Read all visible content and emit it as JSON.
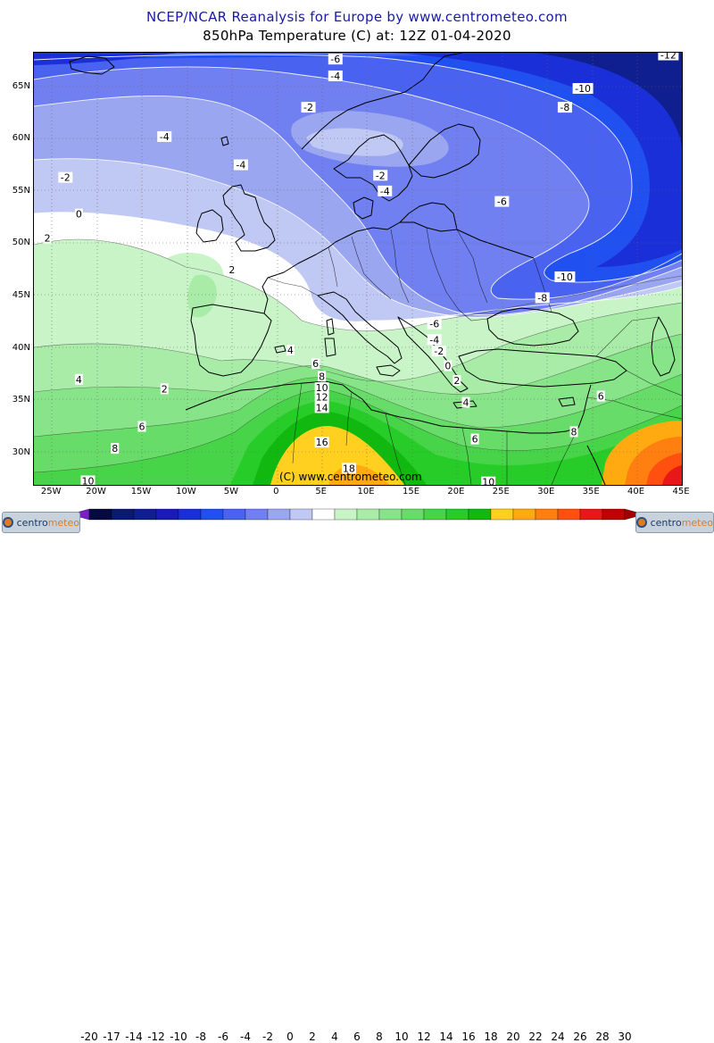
{
  "title_line1": "NCEP/NCAR Reanalysis for Europe by www.centrometeo.com",
  "title_line2": "850hPa Temperature (C) at: 12Z 01-04-2020",
  "copyright": "(C) www.centrometeo.com",
  "logo_left": {
    "a": "centro",
    "b": "meteo"
  },
  "logo_right": {
    "a": "centro",
    "b": "meteo"
  },
  "lat_labels": [
    "65N",
    "60N",
    "55N",
    "50N",
    "45N",
    "40N",
    "35N",
    "30N"
  ],
  "lon_labels": [
    "25W",
    "20W",
    "15W",
    "10W",
    "5W",
    "0",
    "5E",
    "10E",
    "15E",
    "20E",
    "25E",
    "30E",
    "35E",
    "40E",
    "45E"
  ],
  "colorbar": {
    "labels": [
      "-20",
      "-17",
      "-14",
      "-12",
      "-10",
      "-8",
      "-6",
      "-4",
      "-2",
      "0",
      "2",
      "4",
      "6",
      "8",
      "10",
      "12",
      "14",
      "16",
      "18",
      "20",
      "22",
      "24",
      "26",
      "28",
      "30"
    ],
    "colors": [
      "#7a1fc8",
      "#050a40",
      "#0a1a70",
      "#0f1f90",
      "#1a1ab8",
      "#1a2fd8",
      "#2050f0",
      "#4a62f0",
      "#7080f0",
      "#9aa6f0",
      "#c0c8f4",
      "#ffffff",
      "#c8f4c8",
      "#a8eca8",
      "#88e488",
      "#68dc68",
      "#48d448",
      "#28cc28",
      "#10b810",
      "#ffd020",
      "#ffaa10",
      "#ff8010",
      "#ff5010",
      "#e81818",
      "#c00000",
      "#a00000"
    ]
  },
  "contour_labels": [
    {
      "t": "-12",
      "lon": 43.5,
      "lat": 68.0
    },
    {
      "t": "-6",
      "lon": 6.5,
      "lat": 67.6
    },
    {
      "t": "-4",
      "lon": 6.5,
      "lat": 66.0
    },
    {
      "t": "-10",
      "lon": 34.0,
      "lat": 64.8
    },
    {
      "t": "-2",
      "lon": 3.5,
      "lat": 63.0
    },
    {
      "t": "-8",
      "lon": 32.0,
      "lat": 63.0
    },
    {
      "t": "-4",
      "lon": -12.5,
      "lat": 60.2
    },
    {
      "t": "-4",
      "lon": -4.0,
      "lat": 57.5
    },
    {
      "t": "-2",
      "lon": -23.5,
      "lat": 56.3
    },
    {
      "t": "-2",
      "lon": 11.5,
      "lat": 56.5
    },
    {
      "t": "-4",
      "lon": 12.0,
      "lat": 55.0
    },
    {
      "t": "-6",
      "lon": 25.0,
      "lat": 54.0
    },
    {
      "t": "0",
      "lon": -22.0,
      "lat": 52.8
    },
    {
      "t": "2",
      "lon": -25.5,
      "lat": 50.5
    },
    {
      "t": "2",
      "lon": -5.0,
      "lat": 47.5
    },
    {
      "t": "-10",
      "lon": 32.0,
      "lat": 46.8
    },
    {
      "t": "-8",
      "lon": 29.5,
      "lat": 44.8
    },
    {
      "t": "-6",
      "lon": 17.5,
      "lat": 42.3
    },
    {
      "t": "-4",
      "lon": 17.5,
      "lat": 40.8
    },
    {
      "t": "-2",
      "lon": 18.0,
      "lat": 39.7
    },
    {
      "t": "4",
      "lon": 1.5,
      "lat": 39.8
    },
    {
      "t": "6",
      "lon": 4.3,
      "lat": 38.5
    },
    {
      "t": "8",
      "lon": 5.0,
      "lat": 37.3
    },
    {
      "t": "0",
      "lon": 19.0,
      "lat": 38.3
    },
    {
      "t": "2",
      "lon": 20.0,
      "lat": 36.9
    },
    {
      "t": "10",
      "lon": 5.0,
      "lat": 36.2
    },
    {
      "t": "12",
      "lon": 5.0,
      "lat": 35.3
    },
    {
      "t": "4",
      "lon": -22.0,
      "lat": 37.0
    },
    {
      "t": "2",
      "lon": -12.5,
      "lat": 36.1
    },
    {
      "t": "4",
      "lon": 21.0,
      "lat": 34.8
    },
    {
      "t": "6",
      "lon": 36.0,
      "lat": 35.4
    },
    {
      "t": "14",
      "lon": 5.0,
      "lat": 34.3
    },
    {
      "t": "6",
      "lon": -15.0,
      "lat": 32.5
    },
    {
      "t": "8",
      "lon": 33.0,
      "lat": 32.0
    },
    {
      "t": "16",
      "lon": 5.0,
      "lat": 31.0
    },
    {
      "t": "6",
      "lon": 22.0,
      "lat": 31.3
    },
    {
      "t": "8",
      "lon": -18.0,
      "lat": 30.4
    },
    {
      "t": "18",
      "lon": 8.0,
      "lat": 28.5
    },
    {
      "t": "10",
      "lon": -21.0,
      "lat": 27.3
    },
    {
      "t": "10",
      "lon": 23.5,
      "lat": 27.2
    }
  ]
}
